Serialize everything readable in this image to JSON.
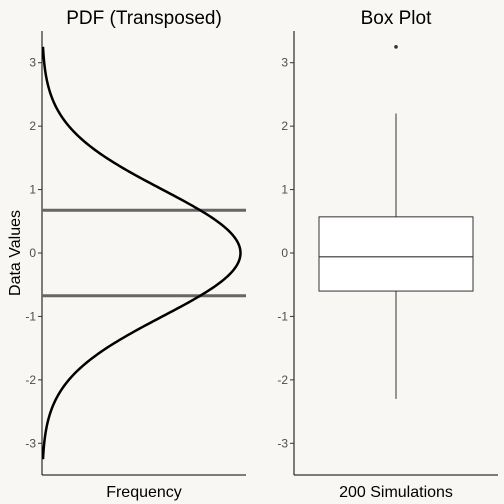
{
  "colors": {
    "background": "#f9f7f3",
    "curve": "#000000",
    "quantile_lines": "#666666",
    "box_fill": "#ffffff",
    "box_stroke": "#333333"
  },
  "chart_data": [
    {
      "type": "line",
      "title": "PDF (Transposed)",
      "xlabel": "Frequency",
      "ylabel": "Data Values",
      "ylim": [
        -3.5,
        3.5
      ],
      "y_ticks": [
        "-3",
        "-2",
        "-1",
        "0",
        "1",
        "2",
        "3"
      ],
      "x_ticks": [],
      "grid": false,
      "series": [
        {
          "points": [
            [
              0.0059,
              -3.25
            ],
            [
              0.0175,
              -2.75
            ],
            [
              0.0443,
              -2.25
            ],
            [
              0.0863,
              -1.8
            ],
            [
              0.1295,
              -1.5
            ],
            [
              0.1942,
              -1.15
            ],
            [
              0.242,
              -1.0
            ],
            [
              0.2897,
              -0.8
            ],
            [
              0.3332,
              -0.6
            ],
            [
              0.3683,
              -0.4
            ],
            [
              0.391,
              -0.2
            ],
            [
              0.3989,
              0.0
            ],
            [
              0.391,
              0.2
            ],
            [
              0.3683,
              0.4
            ],
            [
              0.3332,
              0.6
            ],
            [
              0.2897,
              0.8
            ],
            [
              0.242,
              1.0
            ],
            [
              0.1942,
              1.15
            ],
            [
              0.1295,
              1.5
            ],
            [
              0.0863,
              1.8
            ],
            [
              0.0443,
              2.25
            ],
            [
              0.0175,
              2.75
            ],
            [
              0.0059,
              3.25
            ]
          ]
        }
      ],
      "hlines": [
        0.674,
        -0.674
      ]
    },
    {
      "type": "box",
      "title": "Box Plot",
      "xlabel": "200 Simulations",
      "ylim": [
        -3.5,
        3.5
      ],
      "y_ticks": [
        "-3",
        "-2",
        "-1",
        "0",
        "1",
        "2",
        "3"
      ],
      "grid": false,
      "box": {
        "whisker_low": -2.3,
        "q1": -0.6,
        "median": -0.06,
        "q3": 0.57,
        "whisker_high": 2.2,
        "outliers": [
          3.25
        ]
      }
    }
  ]
}
